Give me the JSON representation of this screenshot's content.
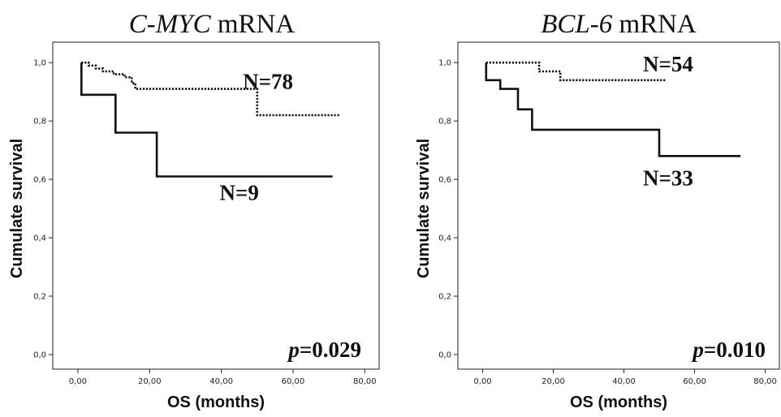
{
  "chart_data": [
    {
      "type": "line",
      "subtype": "kaplan-meier step",
      "title_italic": "C-MYC",
      "title_rest": " mRNA",
      "xlabel": "OS (months)",
      "ylabel": "Cumulate survival",
      "xlim": [
        -7,
        84
      ],
      "ylim": [
        -0.05,
        1.07
      ],
      "xticks": [
        0,
        20,
        40,
        60,
        80
      ],
      "xtick_labels": [
        "0,00",
        "20,00",
        "40,00",
        "60,00",
        "80,00"
      ],
      "yticks": [
        0,
        0.2,
        0.4,
        0.6,
        0.8,
        1.0
      ],
      "ytick_labels": [
        "0,0",
        "0,2",
        "0,4",
        "0,6",
        "0,8",
        "1,0"
      ],
      "p_prefix": "p",
      "p_value": "=0.029",
      "grid": false,
      "series": [
        {
          "name": "N=78",
          "style": "dotted",
          "label_anchor": [
            53,
            0.91
          ],
          "points": [
            [
              1,
              1.0
            ],
            [
              3,
              1.0
            ],
            [
              3,
              0.99
            ],
            [
              5,
              0.99
            ],
            [
              5,
              0.98
            ],
            [
              7,
              0.98
            ],
            [
              7,
              0.97
            ],
            [
              10,
              0.97
            ],
            [
              10,
              0.96
            ],
            [
              13,
              0.96
            ],
            [
              13,
              0.95
            ],
            [
              15,
              0.95
            ],
            [
              15,
              0.93
            ],
            [
              16,
              0.93
            ],
            [
              16,
              0.91
            ],
            [
              50,
              0.91
            ],
            [
              50,
              0.82
            ],
            [
              73,
              0.82
            ]
          ]
        },
        {
          "name": "N=9",
          "style": "solid",
          "label_anchor": [
            45,
            0.53
          ],
          "points": [
            [
              1,
              1.0
            ],
            [
              1,
              0.89
            ],
            [
              10.5,
              0.89
            ],
            [
              10.5,
              0.76
            ],
            [
              22,
              0.76
            ],
            [
              22,
              0.61
            ],
            [
              71,
              0.61
            ]
          ]
        }
      ]
    },
    {
      "type": "line",
      "subtype": "kaplan-meier step",
      "title_italic": "BCL-6",
      "title_rest": " mRNA",
      "xlabel": "OS (months)",
      "ylabel": "Cumulate survival",
      "xlim": [
        -7,
        84
      ],
      "ylim": [
        -0.05,
        1.07
      ],
      "xticks": [
        0,
        20,
        40,
        60,
        80
      ],
      "xtick_labels": [
        "0,00",
        "20,00",
        "40,00",
        "60,00",
        "80,00"
      ],
      "yticks": [
        0,
        0.2,
        0.4,
        0.6,
        0.8,
        1.0
      ],
      "ytick_labels": [
        "0,0",
        "0,2",
        "0,4",
        "0,6",
        "0,8",
        "1,0"
      ],
      "p_prefix": "p",
      "p_value": "=0.010",
      "grid": false,
      "series": [
        {
          "name": "N=54",
          "style": "dotted",
          "label_anchor": [
            52.5,
            0.97
          ],
          "points": [
            [
              1,
              1.0
            ],
            [
              16,
              1.0
            ],
            [
              16,
              0.97
            ],
            [
              22,
              0.97
            ],
            [
              22,
              0.94
            ],
            [
              52,
              0.94
            ]
          ]
        },
        {
          "name": "N=33",
          "style": "solid",
          "label_anchor": [
            52.5,
            0.58
          ],
          "points": [
            [
              1,
              1.0
            ],
            [
              1,
              0.94
            ],
            [
              5,
              0.94
            ],
            [
              5,
              0.91
            ],
            [
              10,
              0.91
            ],
            [
              10,
              0.84
            ],
            [
              14,
              0.84
            ],
            [
              14,
              0.77
            ],
            [
              50,
              0.77
            ],
            [
              50,
              0.68
            ],
            [
              73,
              0.68
            ]
          ]
        }
      ]
    }
  ]
}
